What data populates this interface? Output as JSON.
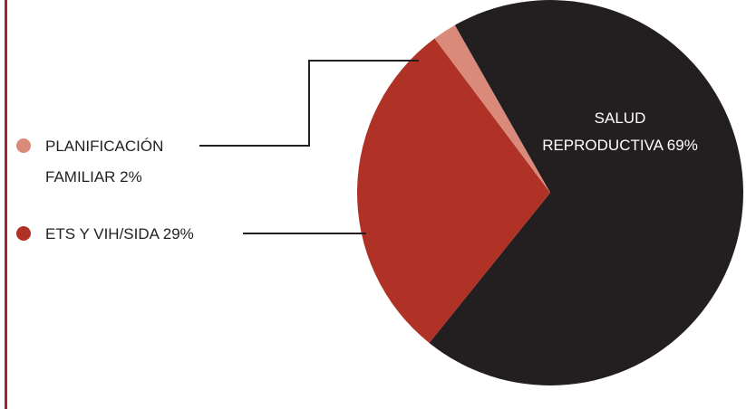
{
  "colors": {
    "frame": "#a7232a",
    "leader": "#231f20",
    "salud": "#231f20",
    "ets": "#b03227",
    "planificacion": "#d98a7a"
  },
  "chart_data": {
    "type": "pie",
    "title": "",
    "slices": [
      {
        "key": "salud",
        "label_lines": [
          "SALUD",
          "REPRODUCTIVA 69%"
        ],
        "value": 69,
        "color": "#231f20"
      },
      {
        "key": "ets",
        "label_lines": [
          "ETS Y VIH/SIDA 29%"
        ],
        "value": 29,
        "color": "#b03227"
      },
      {
        "key": "planificacion",
        "label_lines": [
          "PLANIFICACIÓN",
          "FAMILIAR 2%"
        ],
        "value": 2,
        "color": "#d98a7a"
      }
    ],
    "legend": "left"
  }
}
